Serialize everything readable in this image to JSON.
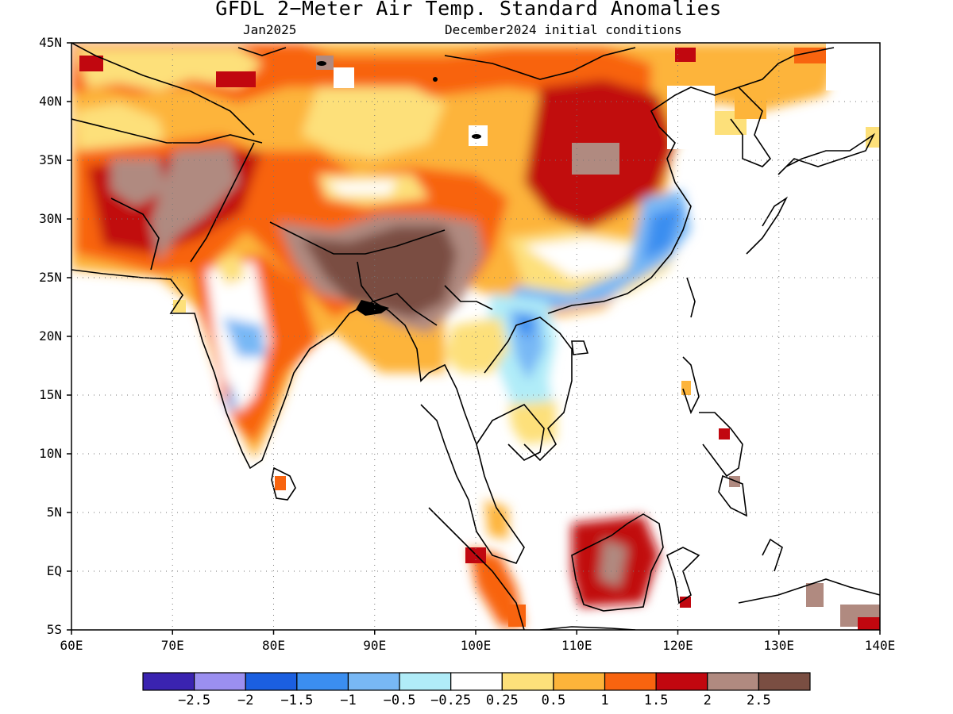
{
  "title": "GFDL 2−Meter Air Temp. Standard Anomalies",
  "subtitle_left": "Jan2025",
  "subtitle_right": "December2024 initial conditions",
  "lat_labels": [
    "45N",
    "40N",
    "35N",
    "30N",
    "25N",
    "20N",
    "15N",
    "10N",
    "5N",
    "EQ",
    "5S"
  ],
  "lon_labels": [
    "60E",
    "70E",
    "80E",
    "90E",
    "100E",
    "110E",
    "120E",
    "130E",
    "140E"
  ],
  "legend": {
    "colors": [
      "#3a23b0",
      "#9b8ff0",
      "#1b5fe0",
      "#3b8ef0",
      "#78b8f5",
      "#b0ecf8",
      "#ffffff",
      "#fde07a",
      "#fdb43a",
      "#f8640f",
      "#c1070f",
      "#b08a80",
      "#7a4e42"
    ],
    "labels": [
      "−2.5",
      "−2",
      "−1.5",
      "−1",
      "−0.5",
      "−0.25",
      "0.25",
      "0.5",
      "1",
      "1.5",
      "2",
      "2.5"
    ]
  }
}
